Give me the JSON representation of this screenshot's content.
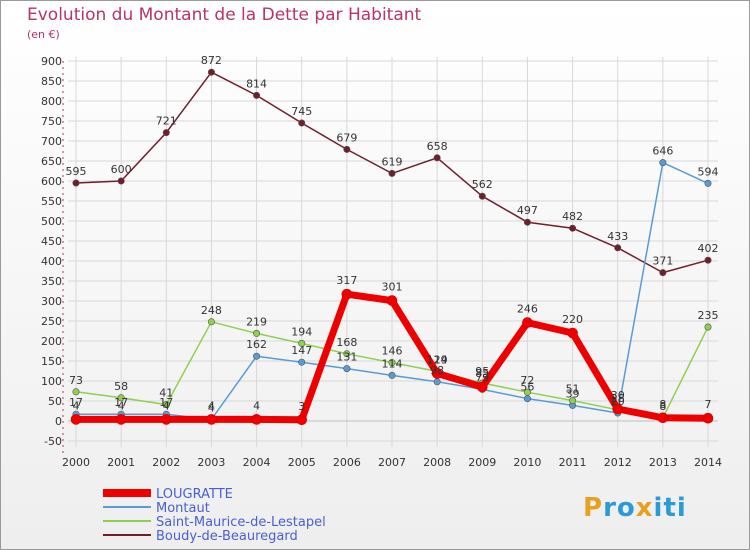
{
  "header": {
    "title": "Evolution du Montant de la Dette par Habitant",
    "subtitle": "(en €)"
  },
  "logo": {
    "letters": [
      "P",
      "r",
      "o",
      "x",
      "i",
      "t",
      "i"
    ],
    "colors": [
      "#e8a020",
      "#2a9bd6",
      "#2a9bd6",
      "#e8a020",
      "#2a9bd6",
      "#2a9bd6",
      "#2a9bd6"
    ]
  },
  "chart_data": {
    "type": "line",
    "title": "Evolution du Montant de la Dette par Habitant",
    "subtitle": "(en €)",
    "xlabel": "",
    "ylabel": "",
    "x": [
      "2000",
      "2001",
      "2002",
      "2003",
      "2004",
      "2005",
      "2006",
      "2007",
      "2008",
      "2009",
      "2010",
      "2011",
      "2012",
      "2013",
      "2014"
    ],
    "ylim": [
      -50,
      900
    ],
    "yticks": [
      -50,
      0,
      50,
      100,
      150,
      200,
      250,
      300,
      350,
      400,
      450,
      500,
      550,
      600,
      650,
      700,
      750,
      800,
      850,
      900
    ],
    "grid": true,
    "legend": "bottom-left",
    "series": [
      {
        "name": "Boudy-de-Beauregard",
        "color": "#6e1f2a",
        "width": 1.5,
        "labels": true,
        "values": [
          595,
          600,
          721,
          872,
          814,
          745,
          679,
          619,
          658,
          562,
          497,
          482,
          433,
          371,
          402
        ]
      },
      {
        "name": "Montaut",
        "color": "#5b9bd5",
        "width": 1.5,
        "labels": true,
        "values": [
          17,
          17,
          17,
          4,
          162,
          147,
          131,
          114,
          98,
          79,
          56,
          39,
          20,
          646,
          594
        ]
      },
      {
        "name": "Saint-Maurice-de-Lestapel",
        "color": "#8fd050",
        "width": 1.5,
        "labels": true,
        "values": [
          73,
          58,
          41,
          248,
          219,
          194,
          168,
          146,
          124,
          95,
          72,
          51,
          28,
          8,
          235
        ]
      },
      {
        "name": "LOUGRATTE",
        "color": "#ee0000",
        "width": 7,
        "labels": true,
        "values": [
          4,
          4,
          4,
          4,
          4,
          3,
          317,
          301,
          119,
          85,
          246,
          220,
          30,
          8,
          7
        ]
      }
    ],
    "legend_order": [
      "LOUGRATTE",
      "Montaut",
      "Saint-Maurice-de-Lestapel",
      "Boudy-de-Beauregard"
    ]
  }
}
